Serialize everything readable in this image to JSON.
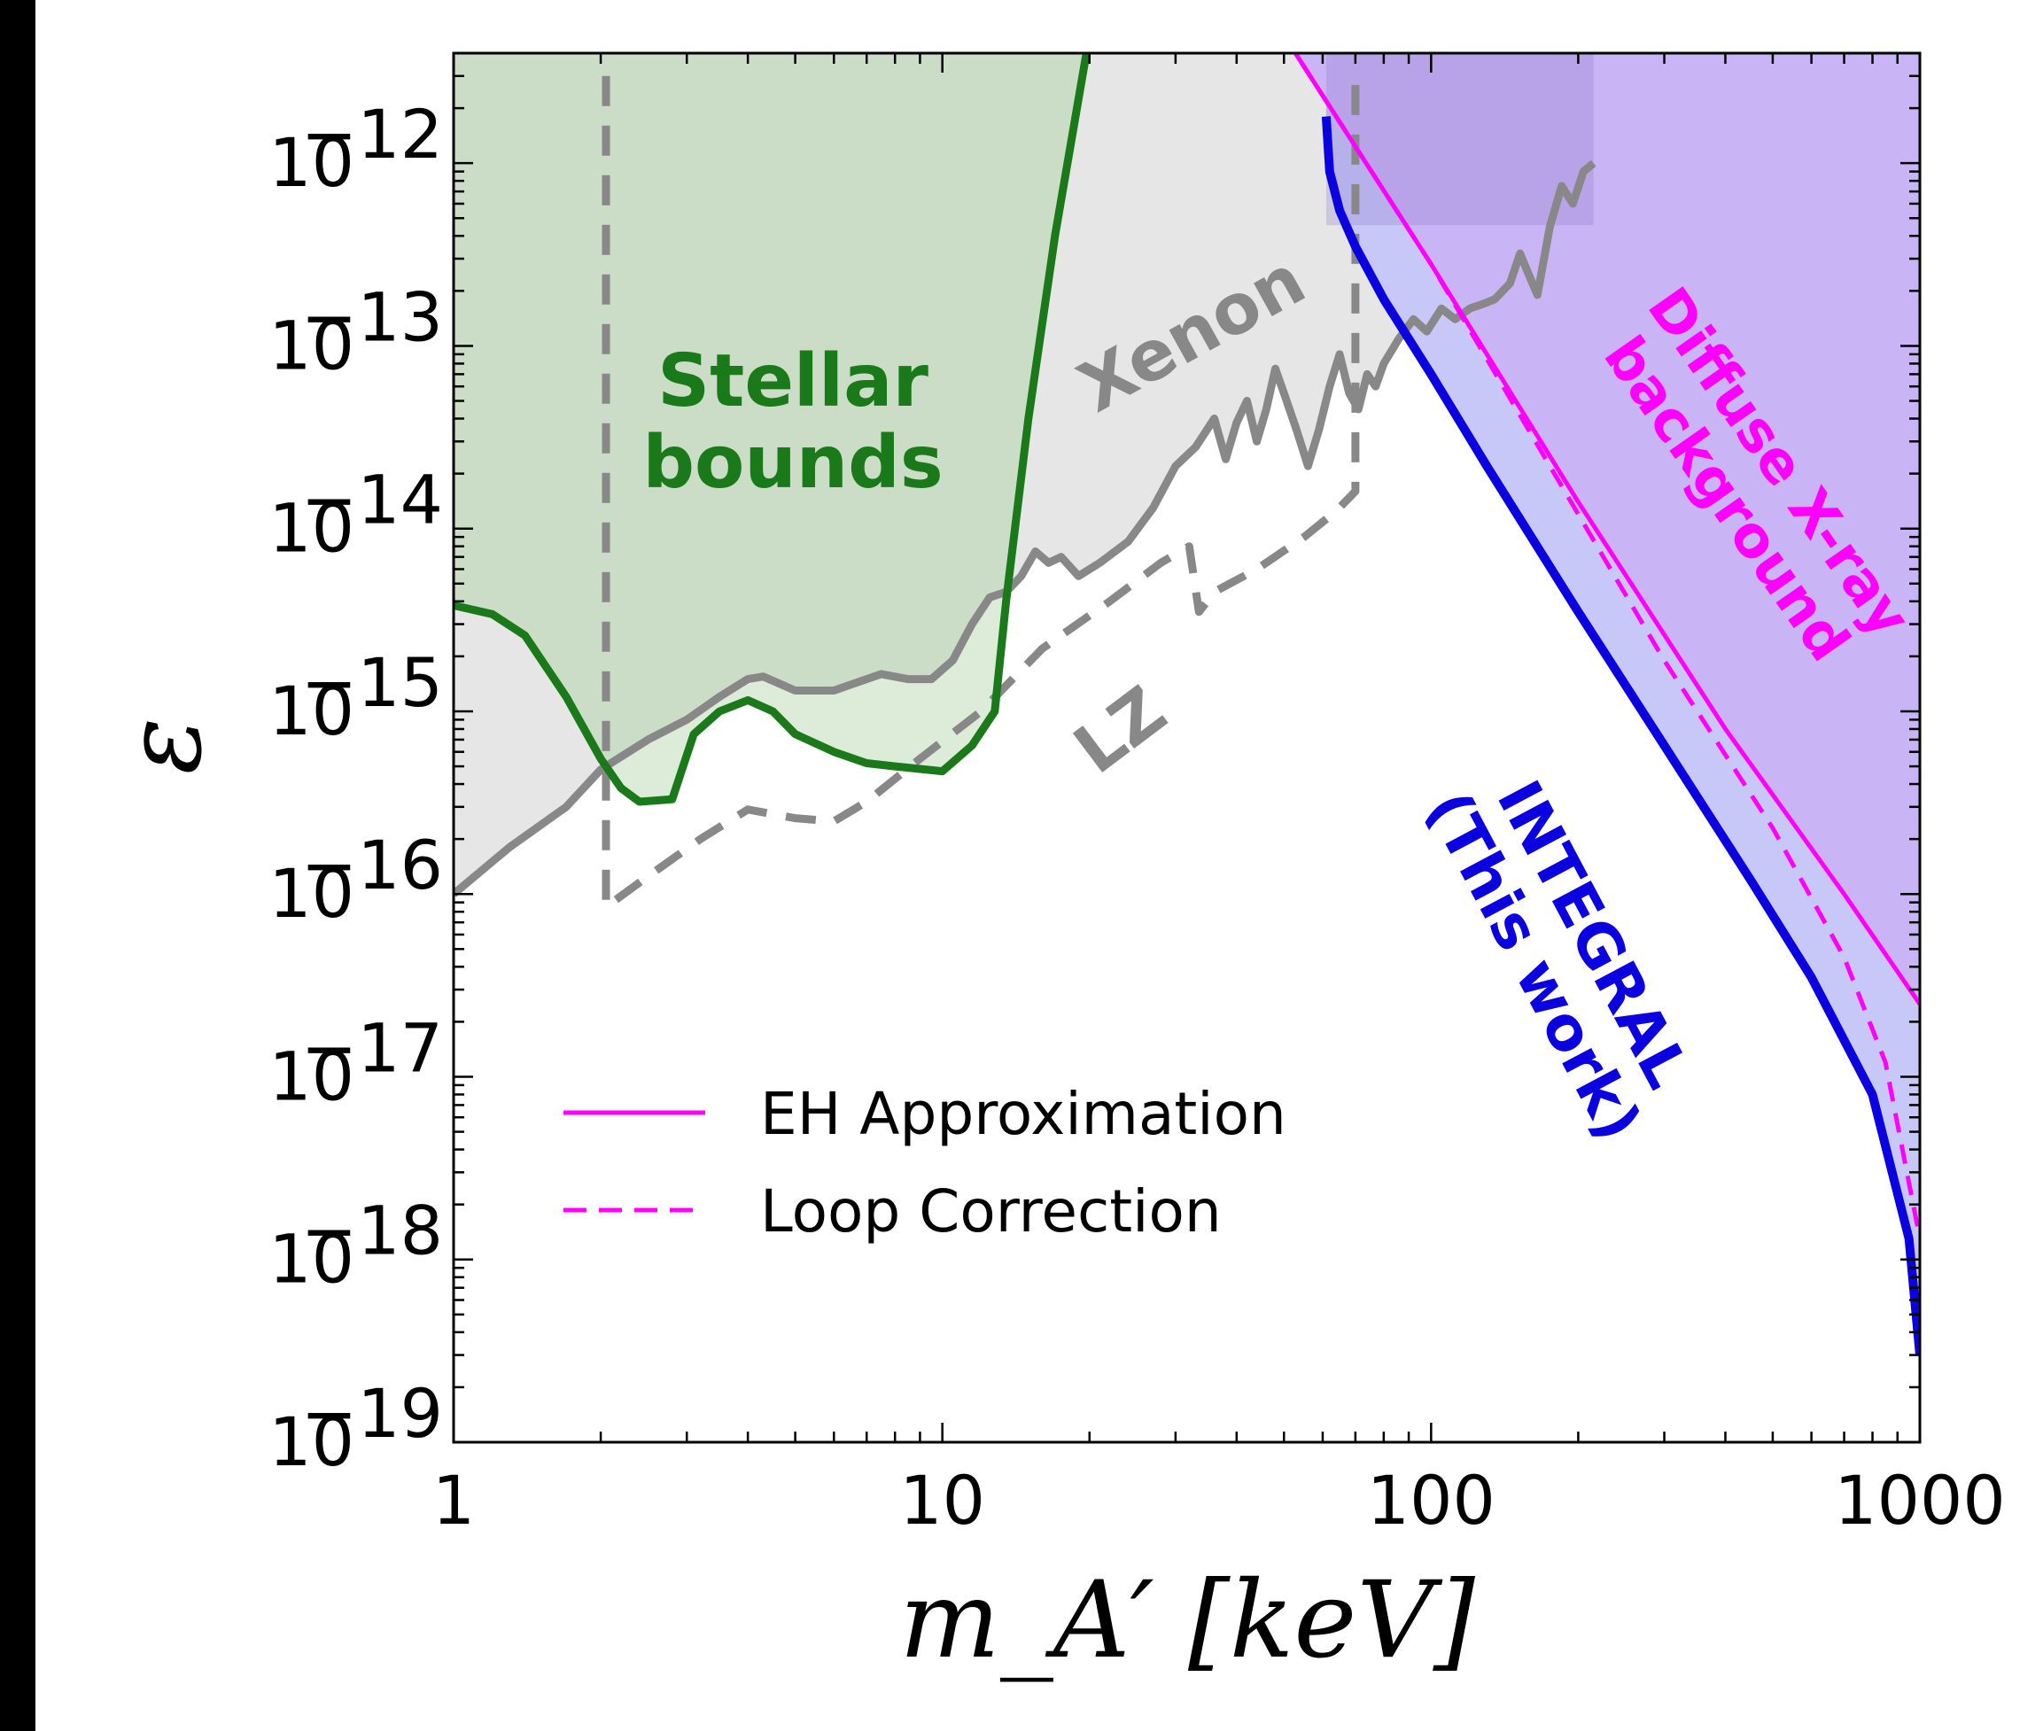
{
  "chart_data": {
    "type": "line",
    "xscale": "log",
    "yscale": "log",
    "xlim": [
      1,
      1000
    ],
    "ylim": [
      1e-19,
      4e-12
    ],
    "xlabel": "m_A′ [keV]",
    "ylabel": "ε",
    "x_ticks": [
      {
        "value": 1,
        "label": "1"
      },
      {
        "value": 10,
        "label": "10"
      },
      {
        "value": 100,
        "label": "100"
      },
      {
        "value": 1000,
        "label": "1000"
      }
    ],
    "y_ticks": [
      {
        "value": 1e-12,
        "base": "10",
        "exp": "−12"
      },
      {
        "value": 1e-13,
        "base": "10",
        "exp": "−13"
      },
      {
        "value": 1e-14,
        "base": "10",
        "exp": "−14"
      },
      {
        "value": 1e-15,
        "base": "10",
        "exp": "−15"
      },
      {
        "value": 1e-16,
        "base": "10",
        "exp": "−16"
      },
      {
        "value": 1e-17,
        "base": "10",
        "exp": "−17"
      },
      {
        "value": 1e-18,
        "base": "10",
        "exp": "−18"
      },
      {
        "value": 1e-19,
        "base": "10",
        "exp": "−19"
      }
    ],
    "colors": {
      "stellar": "#1a7a1a",
      "xenon": "#888888",
      "lz": "#888888",
      "integral": "#0a00e0",
      "diffuse": "#ff00ff",
      "stellar_fill": "#d7e8d2",
      "xenon_fill": "#e6e6e6",
      "integral_fill": "#c7c8f7",
      "diffuse_fill": "#c9b5f6"
    },
    "series": [
      {
        "name": "Stellar bounds",
        "style": "solid",
        "points": [
          [
            1,
            3.8e-15
          ],
          [
            1.2,
            3.4e-15
          ],
          [
            1.4,
            2.6e-15
          ],
          [
            1.7,
            1.2e-15
          ],
          [
            2.0,
            5.5e-16
          ],
          [
            2.2,
            3.8e-16
          ],
          [
            2.4,
            3.2e-16
          ],
          [
            2.8,
            3.3e-16
          ],
          [
            3.1,
            7.5e-16
          ],
          [
            3.5,
            1e-15
          ],
          [
            4.0,
            1.15e-15
          ],
          [
            4.5,
            1e-15
          ],
          [
            5.0,
            7.5e-16
          ],
          [
            6.0,
            6e-16
          ],
          [
            7.0,
            5.2e-16
          ],
          [
            8.0,
            5e-16
          ],
          [
            10.0,
            4.7e-16
          ],
          [
            11.5,
            6.5e-16
          ],
          [
            12.8,
            1e-15
          ],
          [
            13.5,
            4e-15
          ],
          [
            15.0,
            4e-14
          ],
          [
            17.0,
            4e-13
          ],
          [
            20.0,
            5e-12
          ]
        ]
      },
      {
        "name": "Xenon",
        "style": "solid",
        "points": [
          [
            1,
            1e-16
          ],
          [
            1.3,
            1.8e-16
          ],
          [
            1.7,
            3e-16
          ],
          [
            2.0,
            4.8e-16
          ],
          [
            2.5,
            7e-16
          ],
          [
            3.0,
            9e-16
          ],
          [
            3.5,
            1.2e-15
          ],
          [
            4.0,
            1.5e-15
          ],
          [
            4.3,
            1.55e-15
          ],
          [
            5.0,
            1.3e-15
          ],
          [
            6.0,
            1.3e-15
          ],
          [
            6.5,
            1.4e-15
          ],
          [
            7.5,
            1.6e-15
          ],
          [
            8.5,
            1.5e-15
          ],
          [
            9.5,
            1.5e-15
          ],
          [
            10.5,
            1.9e-15
          ],
          [
            11.5,
            3e-15
          ],
          [
            12.5,
            4.2e-15
          ],
          [
            13.5,
            4.5e-15
          ],
          [
            14.5,
            5.5e-15
          ],
          [
            15.5,
            7.5e-15
          ],
          [
            16.5,
            6.5e-15
          ],
          [
            17.5,
            7e-15
          ],
          [
            19.0,
            5.5e-15
          ],
          [
            21.0,
            6.5e-15
          ],
          [
            24.0,
            8.5e-15
          ],
          [
            27.0,
            1.3e-14
          ],
          [
            30.0,
            2.2e-14
          ],
          [
            33.0,
            2.8e-14
          ],
          [
            36.0,
            4e-14
          ],
          [
            38.0,
            2.4e-14
          ],
          [
            40.0,
            3.8e-14
          ],
          [
            42.0,
            5e-14
          ],
          [
            44.0,
            3e-14
          ],
          [
            46.0,
            4.5e-14
          ],
          [
            48.0,
            7.5e-14
          ],
          [
            50.0,
            5.5e-14
          ],
          [
            53.0,
            3.5e-14
          ],
          [
            56.0,
            2.2e-14
          ],
          [
            59.0,
            3.5e-14
          ],
          [
            62.0,
            6e-14
          ],
          [
            65.0,
            9e-14
          ],
          [
            68.0,
            5.5e-14
          ],
          [
            71.0,
            4.5e-14
          ],
          [
            74.0,
            7e-14
          ],
          [
            77.0,
            6e-14
          ],
          [
            80.0,
            8e-14
          ],
          [
            86.0,
            1.1e-13
          ],
          [
            92.0,
            1.4e-13
          ],
          [
            98.0,
            1.2e-13
          ],
          [
            105.0,
            1.6e-13
          ],
          [
            112.0,
            1.4e-13
          ],
          [
            120.0,
            1.6e-13
          ],
          [
            128.0,
            1.7e-13
          ],
          [
            135.0,
            1.8e-13
          ],
          [
            145.0,
            2.2e-13
          ],
          [
            152.0,
            3.2e-13
          ],
          [
            158.0,
            2.5e-13
          ],
          [
            165.0,
            1.9e-13
          ],
          [
            175.0,
            4.5e-13
          ],
          [
            185.0,
            7.5e-13
          ],
          [
            195.0,
            6e-13
          ],
          [
            205.0,
            9e-13
          ],
          [
            215.0,
            1e-12
          ]
        ]
      },
      {
        "name": "LZ",
        "style": "dashed",
        "points": [
          [
            2.05,
            3e-12
          ],
          [
            2.05,
            8.5e-17
          ],
          [
            2.5,
            1.25e-16
          ],
          [
            3.2,
            2e-16
          ],
          [
            4.0,
            2.9e-16
          ],
          [
            5.0,
            2.6e-16
          ],
          [
            6.0,
            2.5e-16
          ],
          [
            7.0,
            3.2e-16
          ],
          [
            9.0,
            5.5e-16
          ],
          [
            12.0,
            1e-15
          ],
          [
            16.0,
            2.2e-15
          ],
          [
            22.0,
            4e-15
          ],
          [
            28.0,
            6.5e-15
          ],
          [
            32.0,
            8e-15
          ],
          [
            33.5,
            3.5e-15
          ],
          [
            36.0,
            4.5e-15
          ],
          [
            44.0,
            6e-15
          ],
          [
            55.0,
            9e-15
          ],
          [
            64.0,
            1.25e-14
          ],
          [
            70.0,
            1.6e-14
          ],
          [
            70.0,
            3e-12
          ]
        ]
      },
      {
        "name": "INTEGRAL (This work)",
        "style": "solid",
        "points": [
          [
            61.0,
            1.8e-12
          ],
          [
            62.0,
            9e-13
          ],
          [
            65.0,
            5.5e-13
          ],
          [
            70.0,
            3.5e-13
          ],
          [
            80.0,
            1.8e-13
          ],
          [
            100.0,
            7e-14
          ],
          [
            130.0,
            2.2e-14
          ],
          [
            200.0,
            3.5e-15
          ],
          [
            300.0,
            6.5e-16
          ],
          [
            450.0,
            1.2e-16
          ],
          [
            600.0,
            3.5e-17
          ],
          [
            800.0,
            8e-18
          ],
          [
            950.0,
            1.3e-18
          ],
          [
            1000.0,
            3e-19
          ]
        ]
      },
      {
        "name": "EH Approximation",
        "style": "solid",
        "points": [
          [
            50.0,
            5e-12
          ],
          [
            100.0,
            2.8e-13
          ],
          [
            200.0,
            1.4e-14
          ],
          [
            400.0,
            8e-16
          ],
          [
            700.0,
            1e-16
          ],
          [
            1000.0,
            2.5e-17
          ]
        ]
      },
      {
        "name": "Loop Correction",
        "style": "dashed",
        "points": [
          [
            50.0,
            5e-12
          ],
          [
            100.0,
            2.8e-13
          ],
          [
            200.0,
            1.2e-14
          ],
          [
            300.0,
            1.9e-15
          ],
          [
            500.0,
            2.3e-16
          ],
          [
            700.0,
            4.5e-17
          ],
          [
            850.0,
            1.2e-17
          ],
          [
            1000.0,
            1.3e-18
          ]
        ]
      }
    ],
    "annotations": [
      {
        "text": "Stellar bounds",
        "lines": [
          "Stellar",
          "bounds"
        ]
      },
      {
        "text": "Xenon"
      },
      {
        "text": "LZ"
      },
      {
        "text": "Diffuse X-ray background",
        "lines": [
          "Diffuse X-ray",
          "background"
        ]
      },
      {
        "text": "INTEGRAL (This work)",
        "lines": [
          "INTEGRAL",
          "(This work)"
        ]
      }
    ],
    "legend": {
      "entries": [
        {
          "label": "EH Approximation",
          "style": "solid"
        },
        {
          "label": "Loop Correction",
          "style": "dashed"
        }
      ]
    }
  }
}
